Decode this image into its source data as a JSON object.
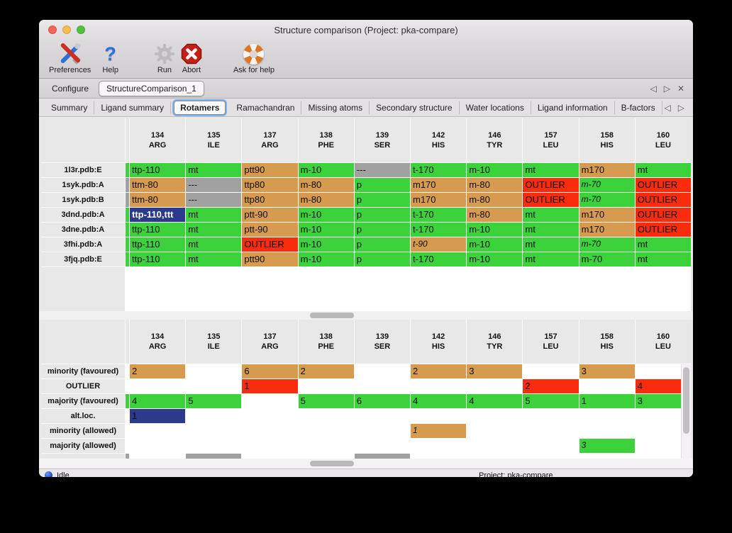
{
  "window": {
    "title": "Structure comparison (Project: pka-compare)"
  },
  "toolbar": {
    "items": [
      {
        "label": "Preferences",
        "icon": "tools-icon"
      },
      {
        "label": "Help",
        "icon": "question-icon",
        "glyph": "?"
      },
      {
        "label": "Run",
        "icon": "gear-icon"
      },
      {
        "label": "Abort",
        "icon": "stop-icon"
      },
      {
        "label": "Ask for help",
        "icon": "lifebuoy-icon"
      }
    ]
  },
  "tabs": {
    "main": [
      "Configure",
      "StructureComparison_1"
    ],
    "selected_main": "StructureComparison_1",
    "sub": [
      "Summary",
      "Ligand summary",
      "Rotamers",
      "Ramachandran",
      "Missing atoms",
      "Secondary structure",
      "Water locations",
      "Ligand information",
      "B-factors"
    ],
    "selected_sub": "Rotamers"
  },
  "icons": {
    "nav_left": "◁",
    "nav_right": "▷",
    "close": "✕"
  },
  "color_map": {
    "g": "#3bd23b",
    "o": "#d79b50",
    "r": "#f92c0e",
    "x": "#a1a1a1",
    "b": "#2c3a8e",
    "w": "#ffffff"
  },
  "columns": [
    {
      "num": "134",
      "name": "ARG"
    },
    {
      "num": "135",
      "name": "ILE"
    },
    {
      "num": "137",
      "name": "ARG"
    },
    {
      "num": "138",
      "name": "PHE"
    },
    {
      "num": "139",
      "name": "SER"
    },
    {
      "num": "142",
      "name": "HIS"
    },
    {
      "num": "146",
      "name": "TYR"
    },
    {
      "num": "157",
      "name": "LEU"
    },
    {
      "num": "158",
      "name": "HIS"
    },
    {
      "num": "160",
      "name": "LEU"
    }
  ],
  "top_table": {
    "rows": [
      {
        "label": "1l3r.pdb:E",
        "sliver": "g",
        "cells": [
          {
            "t": "ttp-110",
            "c": "g"
          },
          {
            "t": "mt",
            "c": "g"
          },
          {
            "t": "ptt90",
            "c": "o"
          },
          {
            "t": "m-10",
            "c": "g"
          },
          {
            "t": "---",
            "c": "x"
          },
          {
            "t": "t-170",
            "c": "g"
          },
          {
            "t": "m-10",
            "c": "g"
          },
          {
            "t": "mt",
            "c": "g"
          },
          {
            "t": "m170",
            "c": "o"
          },
          {
            "t": "mt",
            "c": "g"
          }
        ]
      },
      {
        "label": "1syk.pdb:A",
        "sliver": "x",
        "cells": [
          {
            "t": "ttm-80",
            "c": "o"
          },
          {
            "t": "---",
            "c": "x"
          },
          {
            "t": "ttp80",
            "c": "o"
          },
          {
            "t": "m-80",
            "c": "o"
          },
          {
            "t": "p",
            "c": "g"
          },
          {
            "t": "m170",
            "c": "o"
          },
          {
            "t": "m-80",
            "c": "o"
          },
          {
            "t": "OUTLIER",
            "c": "r"
          },
          {
            "t": "m-70",
            "c": "g",
            "i": true
          },
          {
            "t": "OUTLIER",
            "c": "r"
          }
        ]
      },
      {
        "label": "1syk.pdb:B",
        "sliver": "x",
        "cells": [
          {
            "t": "ttm-80",
            "c": "o"
          },
          {
            "t": "---",
            "c": "x"
          },
          {
            "t": "ttp80",
            "c": "o"
          },
          {
            "t": "m-80",
            "c": "o"
          },
          {
            "t": "p",
            "c": "g"
          },
          {
            "t": "m170",
            "c": "o"
          },
          {
            "t": "m-80",
            "c": "o"
          },
          {
            "t": "OUTLIER",
            "c": "r"
          },
          {
            "t": "m-70",
            "c": "g",
            "i": true
          },
          {
            "t": "OUTLIER",
            "c": "r"
          }
        ]
      },
      {
        "label": "3dnd.pdb:A",
        "sliver": "g",
        "cells": [
          {
            "t": "ttp-110,ttt",
            "c": "b",
            "fg": "#ffffff"
          },
          {
            "t": "mt",
            "c": "g"
          },
          {
            "t": "ptt-90",
            "c": "o"
          },
          {
            "t": "m-10",
            "c": "g"
          },
          {
            "t": "p",
            "c": "g"
          },
          {
            "t": "t-170",
            "c": "g"
          },
          {
            "t": "m-80",
            "c": "o"
          },
          {
            "t": "mt",
            "c": "g"
          },
          {
            "t": "m170",
            "c": "o"
          },
          {
            "t": "OUTLIER",
            "c": "r"
          }
        ]
      },
      {
        "label": "3dne.pdb:A",
        "sliver": "g",
        "cells": [
          {
            "t": "ttp-110",
            "c": "g"
          },
          {
            "t": "mt",
            "c": "g"
          },
          {
            "t": "ptt-90",
            "c": "o"
          },
          {
            "t": "m-10",
            "c": "g"
          },
          {
            "t": "p",
            "c": "g"
          },
          {
            "t": "t-170",
            "c": "g"
          },
          {
            "t": "m-10",
            "c": "g"
          },
          {
            "t": "mt",
            "c": "g"
          },
          {
            "t": "m170",
            "c": "o"
          },
          {
            "t": "OUTLIER",
            "c": "r"
          }
        ]
      },
      {
        "label": "3fhi.pdb:A",
        "sliver": "g",
        "cells": [
          {
            "t": "ttp-110",
            "c": "g"
          },
          {
            "t": "mt",
            "c": "g"
          },
          {
            "t": "OUTLIER",
            "c": "r"
          },
          {
            "t": "m-10",
            "c": "g"
          },
          {
            "t": "p",
            "c": "g"
          },
          {
            "t": "t-90",
            "c": "o",
            "i": true
          },
          {
            "t": "m-10",
            "c": "g"
          },
          {
            "t": "mt",
            "c": "g"
          },
          {
            "t": "m-70",
            "c": "g",
            "i": true
          },
          {
            "t": "mt",
            "c": "g"
          }
        ]
      },
      {
        "label": "3fjq.pdb:E",
        "sliver": "g",
        "cells": [
          {
            "t": "ttp-110",
            "c": "g"
          },
          {
            "t": "mt",
            "c": "g"
          },
          {
            "t": "ptt90",
            "c": "o"
          },
          {
            "t": "m-10",
            "c": "g"
          },
          {
            "t": "p",
            "c": "g"
          },
          {
            "t": "t-170",
            "c": "g"
          },
          {
            "t": "m-10",
            "c": "g"
          },
          {
            "t": "mt",
            "c": "g"
          },
          {
            "t": "m-70",
            "c": "g"
          },
          {
            "t": "mt",
            "c": "g"
          }
        ]
      }
    ]
  },
  "bottom_table": {
    "rows": [
      {
        "label": "minority (favoured)",
        "sliver": "w",
        "cells": [
          {
            "t": "2",
            "c": "o"
          },
          {
            "t": "",
            "c": "w"
          },
          {
            "t": "6",
            "c": "o"
          },
          {
            "t": "2",
            "c": "o"
          },
          {
            "t": "",
            "c": "w"
          },
          {
            "t": "2",
            "c": "o"
          },
          {
            "t": "3",
            "c": "o"
          },
          {
            "t": "",
            "c": "w"
          },
          {
            "t": "3",
            "c": "o"
          },
          {
            "t": "",
            "c": "w"
          }
        ]
      },
      {
        "label": "OUTLIER",
        "sliver": "w",
        "cells": [
          {
            "t": "",
            "c": "w"
          },
          {
            "t": "",
            "c": "w"
          },
          {
            "t": "1",
            "c": "r"
          },
          {
            "t": "",
            "c": "w"
          },
          {
            "t": "",
            "c": "w"
          },
          {
            "t": "",
            "c": "w"
          },
          {
            "t": "",
            "c": "w"
          },
          {
            "t": "2",
            "c": "r"
          },
          {
            "t": "",
            "c": "w"
          },
          {
            "t": "4",
            "c": "r"
          }
        ]
      },
      {
        "label": "majority (favoured)",
        "sliver": "g",
        "cells": [
          {
            "t": "4",
            "c": "g"
          },
          {
            "t": "5",
            "c": "g"
          },
          {
            "t": "",
            "c": "w"
          },
          {
            "t": "5",
            "c": "g"
          },
          {
            "t": "6",
            "c": "g"
          },
          {
            "t": "4",
            "c": "g"
          },
          {
            "t": "4",
            "c": "g"
          },
          {
            "t": "5",
            "c": "g"
          },
          {
            "t": "1",
            "c": "g"
          },
          {
            "t": "3",
            "c": "g"
          }
        ]
      },
      {
        "label": "alt.loc.",
        "sliver": "w",
        "cells": [
          {
            "t": "1",
            "c": "b"
          },
          {
            "t": "",
            "c": "w"
          },
          {
            "t": "",
            "c": "w"
          },
          {
            "t": "",
            "c": "w"
          },
          {
            "t": "",
            "c": "w"
          },
          {
            "t": "",
            "c": "w"
          },
          {
            "t": "",
            "c": "w"
          },
          {
            "t": "",
            "c": "w"
          },
          {
            "t": "",
            "c": "w"
          },
          {
            "t": "",
            "c": "w"
          }
        ]
      },
      {
        "label": "minority (allowed)",
        "sliver": "w",
        "cells": [
          {
            "t": "",
            "c": "w"
          },
          {
            "t": "",
            "c": "w"
          },
          {
            "t": "",
            "c": "w"
          },
          {
            "t": "",
            "c": "w"
          },
          {
            "t": "",
            "c": "w"
          },
          {
            "t": "1",
            "c": "o",
            "i": true
          },
          {
            "t": "",
            "c": "w"
          },
          {
            "t": "",
            "c": "w"
          },
          {
            "t": "",
            "c": "w"
          },
          {
            "t": "",
            "c": "w"
          }
        ]
      },
      {
        "label": "majority (allowed)",
        "sliver": "w",
        "cells": [
          {
            "t": "",
            "c": "w"
          },
          {
            "t": "",
            "c": "w"
          },
          {
            "t": "",
            "c": "w"
          },
          {
            "t": "",
            "c": "w"
          },
          {
            "t": "",
            "c": "w"
          },
          {
            "t": "",
            "c": "w"
          },
          {
            "t": "",
            "c": "w"
          },
          {
            "t": "",
            "c": "w"
          },
          {
            "t": "3",
            "c": "g",
            "i": true
          },
          {
            "t": "",
            "c": "w"
          }
        ]
      }
    ],
    "partial_row": {
      "sliver": "x",
      "cells": [
        "w",
        "x",
        "w",
        "w",
        "x",
        "w",
        "w",
        "w",
        "w",
        "w"
      ]
    }
  },
  "statusbar": {
    "status": "Idle",
    "project": "Project: pka-compare"
  }
}
